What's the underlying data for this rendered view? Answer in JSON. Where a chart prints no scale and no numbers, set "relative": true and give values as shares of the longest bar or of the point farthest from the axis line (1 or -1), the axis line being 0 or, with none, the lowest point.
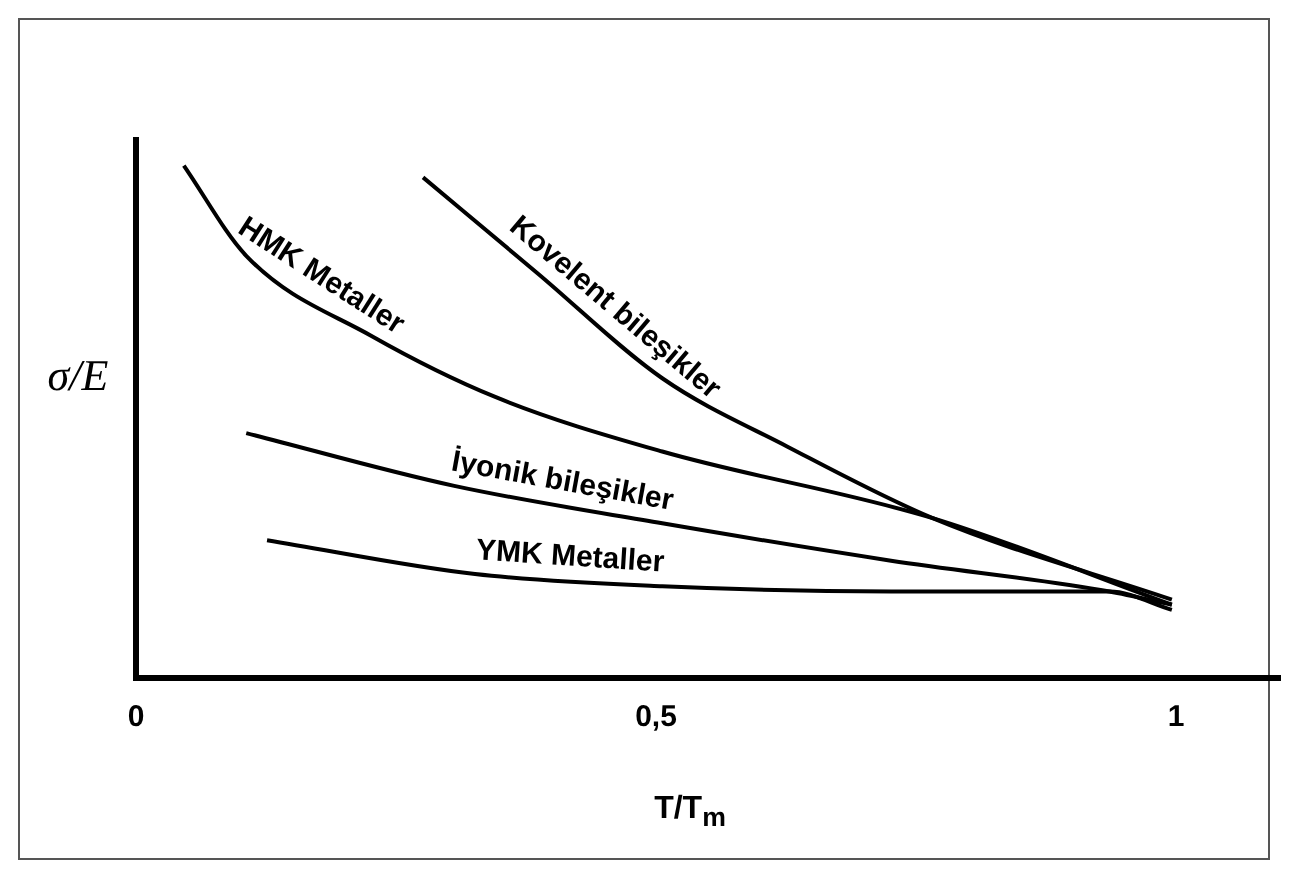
{
  "chart_data": {
    "type": "line",
    "relative": true,
    "xlabel": "T/T$_{m}$",
    "ylabel": "σ/E",
    "xlim": [
      0,
      1.1
    ],
    "xticks": [
      0,
      {
        "value": 0.5,
        "label": "0,5"
      },
      1
    ],
    "grid": false,
    "legend": false,
    "marker": "none",
    "line_style": "solid",
    "series": [
      {
        "name": "HMK Metaller",
        "color": "#000000",
        "x": [
          0.046,
          0.106,
          0.226,
          0.346,
          0.506,
          0.766,
          0.996
        ],
        "values": [
          1.0,
          0.824,
          0.668,
          0.548,
          0.442,
          0.312,
          0.143
        ]
      },
      {
        "name": "Kovelent bileşikler",
        "color": "#000000",
        "x": [
          0.276,
          0.386,
          0.506,
          0.626,
          0.766,
          0.996
        ],
        "values": [
          0.977,
          0.79,
          0.585,
          0.452,
          0.312,
          0.153
        ]
      },
      {
        "name": "İyonik bileşikler",
        "color": "#000000",
        "x": [
          0.106,
          0.306,
          0.506,
          0.726,
          0.936,
          0.996
        ],
        "values": [
          0.478,
          0.375,
          0.302,
          0.229,
          0.169,
          0.143
        ]
      },
      {
        "name": "YMK Metaller",
        "color": "#000000",
        "x": [
          0.126,
          0.326,
          0.506,
          0.726,
          0.936,
          0.996
        ],
        "values": [
          0.269,
          0.203,
          0.179,
          0.169,
          0.169,
          0.133
        ]
      }
    ]
  }
}
